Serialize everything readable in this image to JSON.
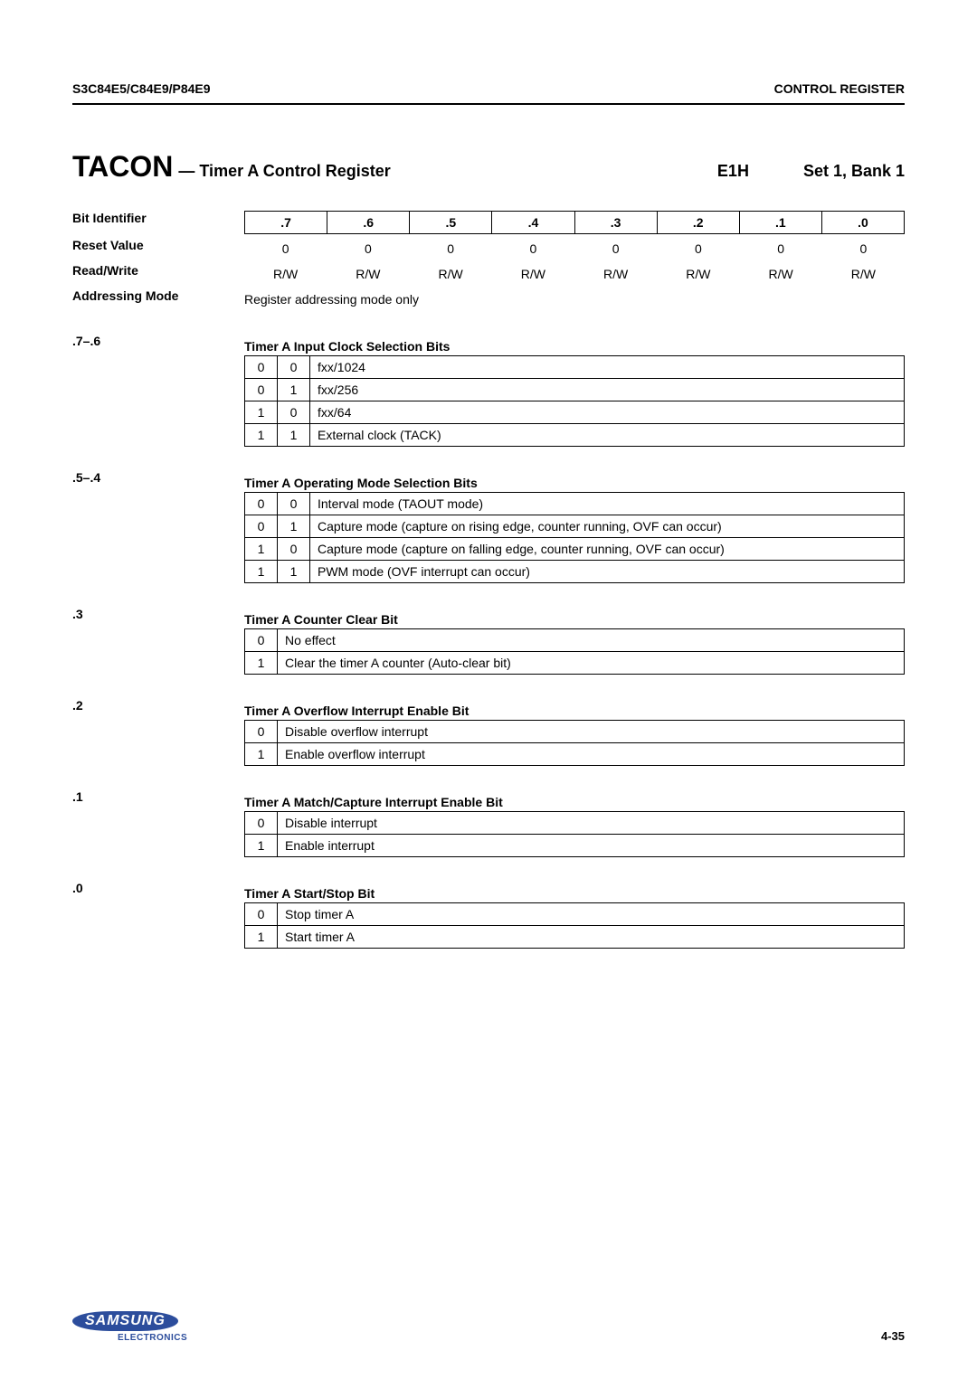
{
  "header": {
    "left": "S3C84E5/C84E9/P84E9",
    "right": "CONTROL REGISTER"
  },
  "title": {
    "name": "TACON",
    "desc": "— Timer A Control Register",
    "addr": "E1H",
    "bank": "Set 1, Bank 1"
  },
  "rows": {
    "bit_identifier_label": "Bit Identifier",
    "bits": [
      ".7",
      ".6",
      ".5",
      ".4",
      ".3",
      ".2",
      ".1",
      ".0"
    ],
    "reset_label": "Reset Value",
    "reset": [
      "0",
      "0",
      "0",
      "0",
      "0",
      "0",
      "0",
      "0"
    ],
    "rw_label": "Read/Write",
    "rw": [
      "R/W",
      "R/W",
      "R/W",
      "R/W",
      "R/W",
      "R/W",
      "R/W",
      "R/W"
    ],
    "addr_mode_label": "Addressing Mode",
    "addr_mode_text": "Register addressing mode only"
  },
  "sections": [
    {
      "bits_label": ".7–.6",
      "title": "Timer A Input Clock Selection Bits",
      "cols": 2,
      "rows": [
        {
          "b": [
            "0",
            "0"
          ],
          "d": "fxx/1024"
        },
        {
          "b": [
            "0",
            "1"
          ],
          "d": "fxx/256"
        },
        {
          "b": [
            "1",
            "0"
          ],
          "d": "fxx/64"
        },
        {
          "b": [
            "1",
            "1"
          ],
          "d": "External clock (TACK)"
        }
      ]
    },
    {
      "bits_label": ".5–.4",
      "title": "Timer A Operating Mode Selection Bits",
      "cols": 2,
      "rows": [
        {
          "b": [
            "0",
            "0"
          ],
          "d": "Interval mode (TAOUT mode)"
        },
        {
          "b": [
            "0",
            "1"
          ],
          "d": "Capture mode (capture on rising edge, counter running, OVF can occur)"
        },
        {
          "b": [
            "1",
            "0"
          ],
          "d": "Capture mode (capture on falling edge, counter running, OVF can occur)"
        },
        {
          "b": [
            "1",
            "1"
          ],
          "d": "PWM mode (OVF interrupt can occur)"
        }
      ]
    },
    {
      "bits_label": ".3",
      "title": "Timer A Counter Clear Bit",
      "cols": 1,
      "rows": [
        {
          "b": [
            "0"
          ],
          "d": "No effect"
        },
        {
          "b": [
            "1"
          ],
          "d": "Clear the timer A counter (Auto-clear bit)"
        }
      ]
    },
    {
      "bits_label": ".2",
      "title": "Timer A Overflow Interrupt Enable Bit",
      "cols": 1,
      "rows": [
        {
          "b": [
            "0"
          ],
          "d": "Disable overflow interrupt"
        },
        {
          "b": [
            "1"
          ],
          "d": "Enable overflow interrupt"
        }
      ]
    },
    {
      "bits_label": ".1",
      "title": "Timer A Match/Capture Interrupt Enable Bit",
      "cols": 1,
      "rows": [
        {
          "b": [
            "0"
          ],
          "d": "Disable interrupt"
        },
        {
          "b": [
            "1"
          ],
          "d": "Enable interrupt"
        }
      ]
    },
    {
      "bits_label": ".0",
      "title": "Timer A Start/Stop Bit",
      "cols": 1,
      "rows": [
        {
          "b": [
            "0"
          ],
          "d": "Stop timer A"
        },
        {
          "b": [
            "1"
          ],
          "d": "Start timer A"
        }
      ]
    }
  ],
  "footer": {
    "logo": "SAMSUNG",
    "sub": "ELECTRONICS",
    "page": "4-35"
  }
}
